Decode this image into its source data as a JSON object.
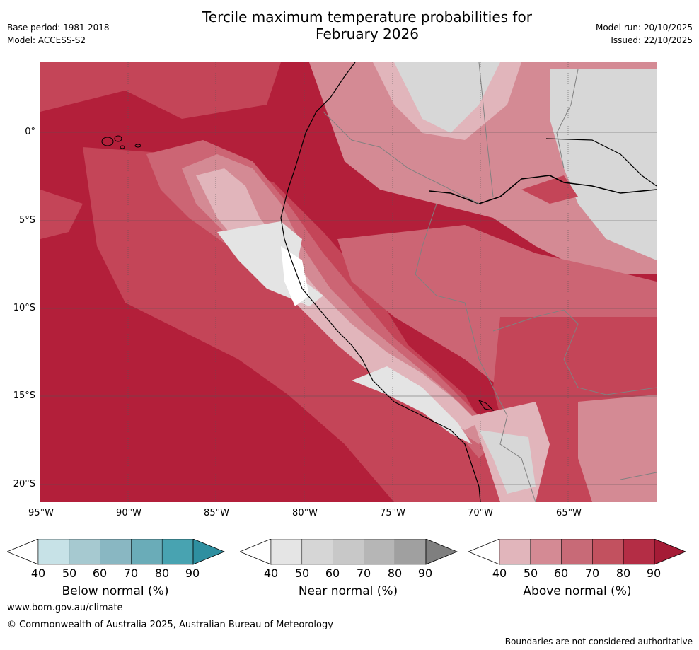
{
  "header": {
    "title_line1": "Tercile maximum temperature probabilities for",
    "title_line2": "February 2026",
    "base_period": "Base period: 1981-2018",
    "model": "Model: ACCESS-S2",
    "model_run": "Model run: 20/10/2025",
    "issued": "Issued: 22/10/2025"
  },
  "map": {
    "lat_labels": [
      "0°",
      "5°S",
      "10°S",
      "15°S",
      "20°S"
    ],
    "lon_labels": [
      "95°W",
      "90°W",
      "85°W",
      "80°W",
      "75°W",
      "70°W",
      "65°W"
    ],
    "colors": {
      "ocean_hot": "#b31f3a",
      "above_70": "#c44558",
      "above_60": "#cc6574",
      "above_50": "#d48a94",
      "above_40": "#e1b5bb",
      "near_50": "#d7d7d7",
      "near_40": "#e4e4e4",
      "white": "#ffffff"
    }
  },
  "colorbars": {
    "below": {
      "title": "Below normal (%)",
      "ticks": [
        "40",
        "50",
        "60",
        "70",
        "80",
        "90"
      ],
      "colors": [
        "#ffffff",
        "#c7e2e7",
        "#a6c9d0",
        "#89b7c2",
        "#6aacb8",
        "#48a3b1",
        "#2e8fa0"
      ]
    },
    "near": {
      "title": "Near normal (%)",
      "ticks": [
        "40",
        "50",
        "60",
        "70",
        "80",
        "90"
      ],
      "colors": [
        "#ffffff",
        "#e5e5e5",
        "#d6d6d6",
        "#c8c8c8",
        "#b6b6b6",
        "#a0a0a0",
        "#7f7f7f"
      ]
    },
    "above": {
      "title": "Above normal (%)",
      "ticks": [
        "40",
        "50",
        "60",
        "70",
        "80",
        "90"
      ],
      "colors": [
        "#ffffff",
        "#e1b5bb",
        "#d48a94",
        "#c86a77",
        "#c2515f",
        "#b42d45",
        "#a51b36"
      ]
    }
  },
  "footer": {
    "website": "www.bom.gov.au/climate",
    "copyright": "© Commonwealth of Australia 2025, Australian Bureau of Meteorology",
    "disclaimer": "Boundaries are not considered authoritative"
  }
}
